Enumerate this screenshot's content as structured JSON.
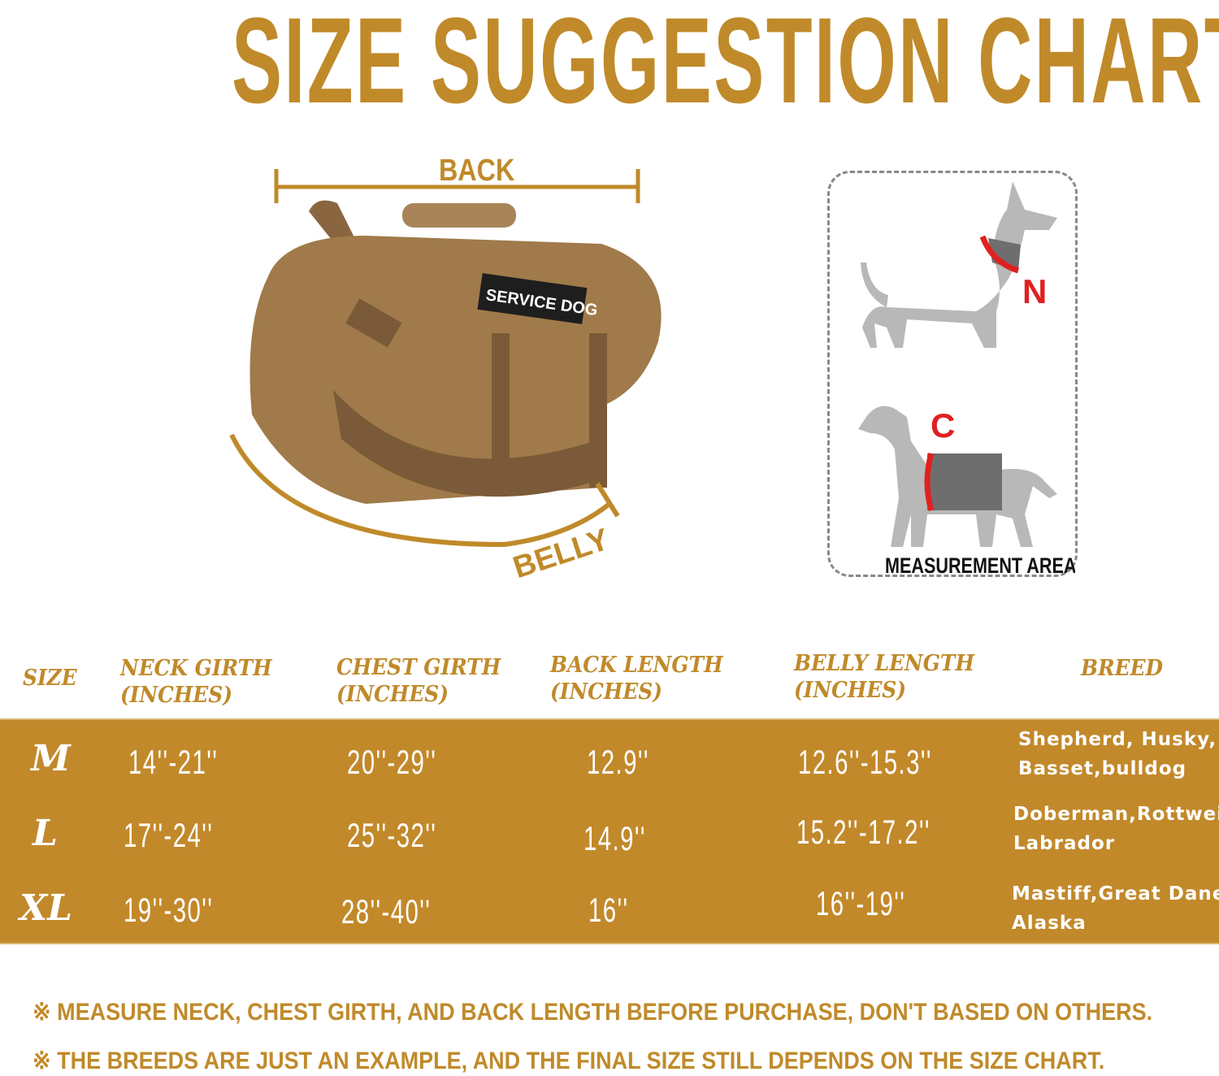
{
  "title": "SIZE SUGGESTION CHART",
  "illustration": {
    "back_label": "BACK",
    "belly_label": "BELLY",
    "patch_text": "SERVICE DOG",
    "harness_color": "#a07a4a",
    "guide_color": "#c08a2a"
  },
  "measurement_panel": {
    "neck_label": "N",
    "chest_label": "C",
    "caption": "MEASUREMENT AREA",
    "marker_color": "#e02020"
  },
  "table": {
    "headers": [
      {
        "line1": "SIZE",
        "line2": ""
      },
      {
        "line1": "NECK GIRTH",
        "line2": "(INCHES)"
      },
      {
        "line1": "CHEST GIRTH",
        "line2": "(INCHES)"
      },
      {
        "line1": "BACK LENGTH",
        "line2": "(INCHES)"
      },
      {
        "line1": "BELLY LENGTH",
        "line2": "(INCHES)"
      },
      {
        "line1": "BREED",
        "line2": ""
      }
    ],
    "rows": [
      {
        "size": "M",
        "neck": "14''-21''",
        "chest": "20''-29''",
        "back": "12.9''",
        "belly": "12.6''-15.3''",
        "breed1": "Shepherd, Husky,",
        "breed2": "Basset,bulldog"
      },
      {
        "size": "L",
        "neck": "17''-24''",
        "chest": "25''-32''",
        "back": "14.9''",
        "belly": "15.2''-17.2''",
        "breed1": "Doberman,Rottweiler",
        "breed2": "Labrador"
      },
      {
        "size": "XL",
        "neck": "19''-30''",
        "chest": "28''-40''",
        "back": "16''",
        "belly": "16''-19''",
        "breed1": "Mastiff,Great Dane,",
        "breed2": "Alaska"
      }
    ],
    "band_color": "#c2892a"
  },
  "notes": [
    "※ MEASURE NECK, CHEST GIRTH, AND BACK LENGTH BEFORE PURCHASE, DON'T BASED ON OTHERS.",
    "※ THE BREEDS ARE JUST AN EXAMPLE, AND THE FINAL SIZE STILL DEPENDS ON THE SIZE CHART."
  ],
  "accent_color": "#c08a2a"
}
